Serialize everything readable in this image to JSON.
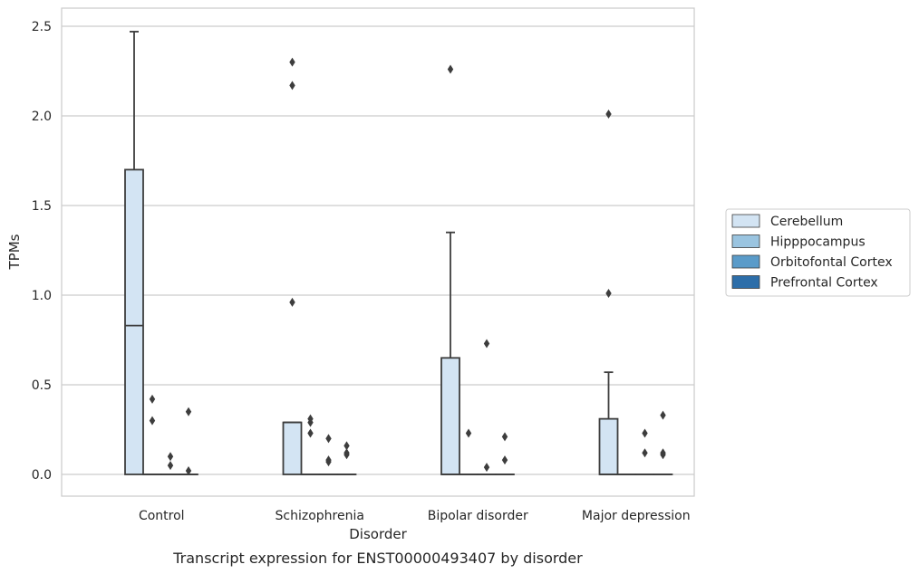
{
  "chart_data": {
    "type": "box",
    "caption": "Transcript expression for ENST00000493407 by disorder",
    "xlabel": "Disorder",
    "ylabel": "TPMs",
    "ylim": [
      -0.12,
      2.6
    ],
    "yticks": [
      0.0,
      0.5,
      1.0,
      1.5,
      2.0,
      2.5
    ],
    "ytick_labels": [
      "0.0",
      "0.5",
      "1.0",
      "1.5",
      "2.0",
      "2.5"
    ],
    "grid": "horizontal",
    "legend_position": "right",
    "categories": [
      "Control",
      "Schizophrenia",
      "Bipolar disorder",
      "Major depression"
    ],
    "series": [
      {
        "name": "Cerebellum",
        "color": "#d3e4f3",
        "boxes": [
          {
            "q1": 0.0,
            "median": 0.83,
            "q3": 1.7,
            "whisker_low": 0.0,
            "whisker_high": 2.47,
            "outliers": []
          },
          {
            "q1": 0.0,
            "median": 0.29,
            "q3": 0.29,
            "whisker_low": 0.0,
            "whisker_high": 0.29,
            "outliers": [
              0.96,
              2.17,
              2.3
            ]
          },
          {
            "q1": 0.0,
            "median": 0.0,
            "q3": 0.65,
            "whisker_low": 0.0,
            "whisker_high": 1.35,
            "outliers": [
              2.26
            ]
          },
          {
            "q1": 0.0,
            "median": 0.0,
            "q3": 0.31,
            "whisker_low": 0.0,
            "whisker_high": 0.57,
            "outliers": [
              1.01,
              2.01
            ]
          }
        ]
      },
      {
        "name": "Hipppocampus",
        "color": "#9ac4e0",
        "boxes": [
          {
            "q1": 0.0,
            "median": 0.0,
            "q3": 0.0,
            "whisker_low": 0.0,
            "whisker_high": 0.0,
            "outliers": [
              0.3,
              0.42
            ]
          },
          {
            "q1": 0.0,
            "median": 0.0,
            "q3": 0.0,
            "whisker_low": 0.0,
            "whisker_high": 0.0,
            "outliers": [
              0.23,
              0.29,
              0.31
            ]
          },
          {
            "q1": 0.0,
            "median": 0.0,
            "q3": 0.0,
            "whisker_low": 0.0,
            "whisker_high": 0.0,
            "outliers": [
              0.23
            ]
          },
          {
            "q1": 0.0,
            "median": 0.0,
            "q3": 0.0,
            "whisker_low": 0.0,
            "whisker_high": 0.0,
            "outliers": []
          }
        ]
      },
      {
        "name": "Orbitofontal Cortex",
        "color": "#5a9bc9",
        "boxes": [
          {
            "q1": 0.0,
            "median": 0.0,
            "q3": 0.0,
            "whisker_low": 0.0,
            "whisker_high": 0.0,
            "outliers": [
              0.05,
              0.1
            ]
          },
          {
            "q1": 0.0,
            "median": 0.0,
            "q3": 0.0,
            "whisker_low": 0.0,
            "whisker_high": 0.0,
            "outliers": [
              0.07,
              0.08,
              0.2
            ]
          },
          {
            "q1": 0.0,
            "median": 0.0,
            "q3": 0.0,
            "whisker_low": 0.0,
            "whisker_high": 0.0,
            "outliers": [
              0.04,
              0.73
            ]
          },
          {
            "q1": 0.0,
            "median": 0.0,
            "q3": 0.0,
            "whisker_low": 0.0,
            "whisker_high": 0.0,
            "outliers": [
              0.12,
              0.23
            ]
          }
        ]
      },
      {
        "name": "Prefrontal Cortex",
        "color": "#2d6ea9",
        "boxes": [
          {
            "q1": 0.0,
            "median": 0.0,
            "q3": 0.0,
            "whisker_low": 0.0,
            "whisker_high": 0.0,
            "outliers": [
              0.02,
              0.35
            ]
          },
          {
            "q1": 0.0,
            "median": 0.0,
            "q3": 0.0,
            "whisker_low": 0.0,
            "whisker_high": 0.0,
            "outliers": [
              0.11,
              0.12,
              0.16
            ]
          },
          {
            "q1": 0.0,
            "median": 0.0,
            "q3": 0.0,
            "whisker_low": 0.0,
            "whisker_high": 0.0,
            "outliers": [
              0.08,
              0.21
            ]
          },
          {
            "q1": 0.0,
            "median": 0.0,
            "q3": 0.0,
            "whisker_low": 0.0,
            "whisker_high": 0.0,
            "outliers": [
              0.11,
              0.12,
              0.33
            ]
          }
        ]
      }
    ]
  }
}
